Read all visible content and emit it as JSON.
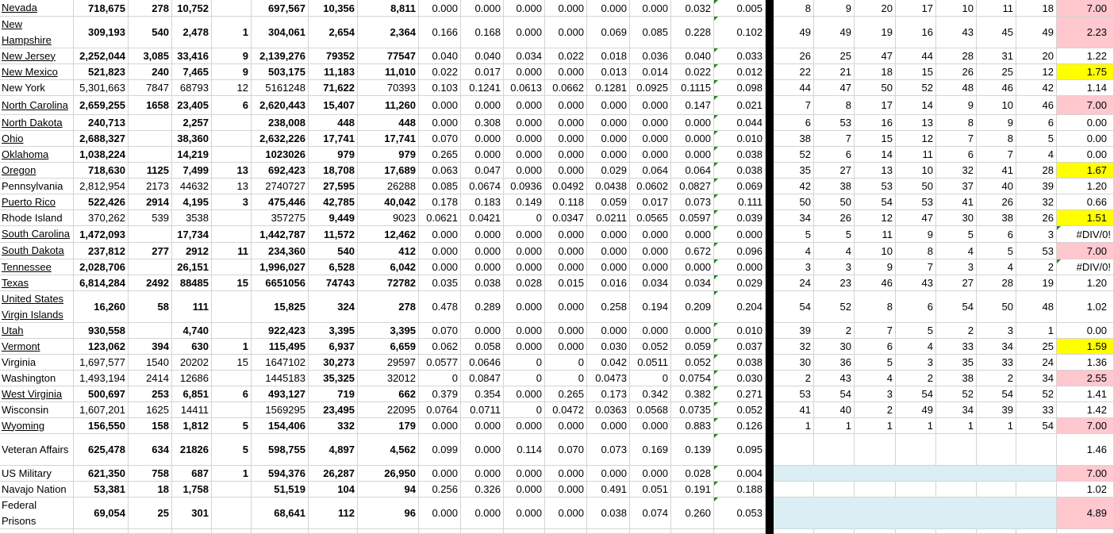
{
  "colors": {
    "pink_fill": "#ffc7ce",
    "yellow_fill": "#ffff00",
    "blue_fill": "#daeef3",
    "divider": "#000000"
  },
  "rows": [
    {
      "name": "Nevada",
      "link": true,
      "bold": true,
      "values": [
        "718,675",
        "278",
        "10,752",
        "",
        "697,567",
        "10,356",
        "8,811"
      ],
      "ratios": [
        "0.000",
        "0.000",
        "0.000",
        "0.000",
        "0.000",
        "0.000",
        "0.032"
      ],
      "avg": "0.005",
      "ranks": [
        "8",
        "9",
        "20",
        "17",
        "10",
        "11",
        "18"
      ],
      "score": "7.00",
      "score_fill": "#ffc7ce"
    },
    {
      "name": "New Hampshire",
      "link": true,
      "bold": true,
      "values": [
        "309,193",
        "540",
        "2,478",
        "1",
        "304,061",
        "2,654",
        "2,364"
      ],
      "ratios": [
        "0.166",
        "0.168",
        "0.000",
        "0.000",
        "0.069",
        "0.085",
        "0.228"
      ],
      "avg": "0.102",
      "ranks": [
        "49",
        "49",
        "19",
        "16",
        "43",
        "45",
        "49"
      ],
      "score": "2.23",
      "score_fill": "#ffc7ce"
    },
    {
      "name": "New Jersey",
      "link": true,
      "bold": true,
      "values": [
        "2,252,044",
        "3,085",
        "33,416",
        "9",
        "2,139,276",
        "79352",
        "77547"
      ],
      "ratios": [
        "0.040",
        "0.040",
        "0.034",
        "0.022",
        "0.018",
        "0.036",
        "0.040"
      ],
      "avg": "0.033",
      "ranks": [
        "26",
        "25",
        "47",
        "44",
        "28",
        "31",
        "20"
      ],
      "score": "1.22",
      "score_fill": null
    },
    {
      "name": "New Mexico",
      "link": true,
      "bold": true,
      "values": [
        "521,823",
        "240",
        "7,465",
        "9",
        "503,175",
        "11,183",
        "11,010"
      ],
      "ratios": [
        "0.022",
        "0.017",
        "0.000",
        "0.000",
        "0.013",
        "0.014",
        "0.022"
      ],
      "avg": "0.012",
      "ranks": [
        "22",
        "21",
        "18",
        "15",
        "26",
        "25",
        "12"
      ],
      "score": "1.75",
      "score_fill": "#ffff00"
    },
    {
      "name": "New York",
      "link": false,
      "bold": false,
      "values": [
        "5,301,663",
        "7847",
        "68793",
        "12",
        "5161248",
        "71,622",
        "70393"
      ],
      "ratios": [
        "0.103",
        "0.1241",
        "0.0613",
        "0.0662",
        "0.1281",
        "0.0925",
        "0.1115"
      ],
      "avg": "0.098",
      "ranks": [
        "44",
        "47",
        "50",
        "52",
        "48",
        "46",
        "42"
      ],
      "score": "1.14",
      "score_fill": null
    },
    {
      "name": "North Carolina",
      "link": true,
      "bold": true,
      "values": [
        "2,659,255",
        "1658",
        "23,405",
        "6",
        "2,620,443",
        "15,407",
        "11,260"
      ],
      "ratios": [
        "0.000",
        "0.000",
        "0.000",
        "0.000",
        "0.000",
        "0.000",
        "0.147"
      ],
      "avg": "0.021",
      "ranks": [
        "7",
        "8",
        "17",
        "14",
        "9",
        "10",
        "46"
      ],
      "score": "7.00",
      "score_fill": "#ffc7ce"
    },
    {
      "name": "North Dakota",
      "link": true,
      "bold": true,
      "values": [
        "240,713",
        "",
        "2,257",
        "",
        "238,008",
        "448",
        "448"
      ],
      "ratios": [
        "0.000",
        "0.308",
        "0.000",
        "0.000",
        "0.000",
        "0.000",
        "0.000"
      ],
      "avg": "0.044",
      "ranks": [
        "6",
        "53",
        "16",
        "13",
        "8",
        "9",
        "6"
      ],
      "score": "0.00",
      "score_fill": null
    },
    {
      "name": "Ohio",
      "link": true,
      "bold": true,
      "values": [
        "2,688,327",
        "",
        "38,360",
        "",
        "2,632,226",
        "17,741",
        "17,741"
      ],
      "ratios": [
        "0.070",
        "0.000",
        "0.000",
        "0.000",
        "0.000",
        "0.000",
        "0.000"
      ],
      "avg": "0.010",
      "ranks": [
        "38",
        "7",
        "15",
        "12",
        "7",
        "8",
        "5"
      ],
      "score": "0.00",
      "score_fill": null
    },
    {
      "name": "Oklahoma",
      "link": true,
      "bold": true,
      "values": [
        "1,038,224",
        "",
        "14,219",
        "",
        "1023026",
        "979",
        "979"
      ],
      "ratios": [
        "0.265",
        "0.000",
        "0.000",
        "0.000",
        "0.000",
        "0.000",
        "0.000"
      ],
      "avg": "0.038",
      "ranks": [
        "52",
        "6",
        "14",
        "11",
        "6",
        "7",
        "4"
      ],
      "score": "0.00",
      "score_fill": null
    },
    {
      "name": "Oregon",
      "link": true,
      "bold": true,
      "values": [
        "718,630",
        "1125",
        "7,499",
        "13",
        "692,423",
        "18,708",
        "17,689"
      ],
      "ratios": [
        "0.063",
        "0.047",
        "0.000",
        "0.000",
        "0.029",
        "0.064",
        "0.064"
      ],
      "avg": "0.038",
      "ranks": [
        "35",
        "27",
        "13",
        "10",
        "32",
        "41",
        "28"
      ],
      "score": "1.67",
      "score_fill": "#ffff00"
    },
    {
      "name": "Pennsylvania",
      "link": false,
      "bold": false,
      "values": [
        "2,812,954",
        "2173",
        "44632",
        "13",
        "2740727",
        "27,595",
        "26288"
      ],
      "ratios": [
        "0.085",
        "0.0674",
        "0.0936",
        "0.0492",
        "0.0438",
        "0.0602",
        "0.0827"
      ],
      "avg": "0.069",
      "ranks": [
        "42",
        "38",
        "53",
        "50",
        "37",
        "40",
        "39"
      ],
      "score": "1.20",
      "score_fill": null
    },
    {
      "name": "Puerto Rico",
      "link": true,
      "bold": true,
      "values": [
        "522,426",
        "2914",
        "4,195",
        "3",
        "475,446",
        "42,785",
        "40,042"
      ],
      "ratios": [
        "0.178",
        "0.183",
        "0.149",
        "0.118",
        "0.059",
        "0.017",
        "0.073"
      ],
      "avg": "0.111",
      "ranks": [
        "50",
        "50",
        "54",
        "53",
        "41",
        "26",
        "32"
      ],
      "score": "0.66",
      "score_fill": null
    },
    {
      "name": "Rhode Island",
      "link": false,
      "bold": false,
      "values": [
        "370,262",
        "539",
        "3538",
        "",
        "357275",
        "9,449",
        "9023"
      ],
      "ratios": [
        "0.0621",
        "0.0421",
        "0",
        "0.0347",
        "0.0211",
        "0.0565",
        "0.0597"
      ],
      "avg": "0.039",
      "ranks": [
        "34",
        "26",
        "12",
        "47",
        "30",
        "38",
        "26"
      ],
      "score": "1.51",
      "score_fill": "#ffff00"
    },
    {
      "name": "South Carolina",
      "link": true,
      "bold": true,
      "values": [
        "1,472,093",
        "",
        "17,734",
        "",
        "1,442,787",
        "11,572",
        "12,462"
      ],
      "ratios": [
        "0.000",
        "0.000",
        "0.000",
        "0.000",
        "0.000",
        "0.000",
        "0.000"
      ],
      "avg": "0.000",
      "ranks": [
        "5",
        "5",
        "11",
        "9",
        "5",
        "6",
        "3"
      ],
      "score": "#DIV/0!",
      "score_fill": null
    },
    {
      "name": "South Dakota",
      "link": true,
      "bold": true,
      "values": [
        "237,812",
        "277",
        "2912",
        "11",
        "234,360",
        "540",
        "412"
      ],
      "ratios": [
        "0.000",
        "0.000",
        "0.000",
        "0.000",
        "0.000",
        "0.000",
        "0.672"
      ],
      "avg": "0.096",
      "ranks": [
        "4",
        "4",
        "10",
        "8",
        "4",
        "5",
        "53"
      ],
      "score": "7.00",
      "score_fill": "#ffc7ce"
    },
    {
      "name": "Tennessee",
      "link": true,
      "bold": true,
      "values": [
        "2,028,706",
        "",
        "26,151",
        "",
        "1,996,027",
        "6,528",
        "6,042"
      ],
      "ratios": [
        "0.000",
        "0.000",
        "0.000",
        "0.000",
        "0.000",
        "0.000",
        "0.000"
      ],
      "avg": "0.000",
      "ranks": [
        "3",
        "3",
        "9",
        "7",
        "3",
        "4",
        "2"
      ],
      "score": "#DIV/0!",
      "score_fill": null
    },
    {
      "name": "Texas",
      "link": true,
      "bold": true,
      "values": [
        "6,814,284",
        "2492",
        "88485",
        "15",
        "6651056",
        "74743",
        "72782"
      ],
      "ratios": [
        "0.035",
        "0.038",
        "0.028",
        "0.015",
        "0.016",
        "0.034",
        "0.034"
      ],
      "avg": "0.029",
      "ranks": [
        "24",
        "23",
        "46",
        "43",
        "27",
        "28",
        "19"
      ],
      "score": "1.20",
      "score_fill": null
    },
    {
      "name": "United States Virgin Islands",
      "link": true,
      "bold": true,
      "values": [
        "16,260",
        "58",
        "111",
        "",
        "15,825",
        "324",
        "278"
      ],
      "ratios": [
        "0.478",
        "0.289",
        "0.000",
        "0.000",
        "0.258",
        "0.194",
        "0.209"
      ],
      "avg": "0.204",
      "ranks": [
        "54",
        "52",
        "8",
        "6",
        "54",
        "50",
        "48"
      ],
      "score": "1.02",
      "score_fill": null
    },
    {
      "name": "Utah",
      "link": true,
      "bold": true,
      "values": [
        "930,558",
        "",
        "4,740",
        "",
        "922,423",
        "3,395",
        "3,395"
      ],
      "ratios": [
        "0.070",
        "0.000",
        "0.000",
        "0.000",
        "0.000",
        "0.000",
        "0.000"
      ],
      "avg": "0.010",
      "ranks": [
        "39",
        "2",
        "7",
        "5",
        "2",
        "3",
        "1"
      ],
      "score": "0.00",
      "score_fill": null
    },
    {
      "name": "Vermont",
      "link": true,
      "bold": true,
      "values": [
        "123,062",
        "394",
        "630",
        "1",
        "115,495",
        "6,937",
        "6,659"
      ],
      "ratios": [
        "0.062",
        "0.058",
        "0.000",
        "0.000",
        "0.030",
        "0.052",
        "0.059"
      ],
      "avg": "0.037",
      "ranks": [
        "32",
        "30",
        "6",
        "4",
        "33",
        "34",
        "25"
      ],
      "score": "1.59",
      "score_fill": "#ffff00"
    },
    {
      "name": "Virginia",
      "link": false,
      "bold": false,
      "values": [
        "1,697,577",
        "1540",
        "20202",
        "15",
        "1647102",
        "30,273",
        "29597"
      ],
      "ratios": [
        "0.0577",
        "0.0646",
        "0",
        "0",
        "0.042",
        "0.0511",
        "0.052"
      ],
      "avg": "0.038",
      "ranks": [
        "30",
        "36",
        "5",
        "3",
        "35",
        "33",
        "24"
      ],
      "score": "1.36",
      "score_fill": null
    },
    {
      "name": "Washington",
      "link": false,
      "bold": false,
      "values": [
        "1,493,194",
        "2414",
        "12686",
        "",
        "1445183",
        "35,325",
        "32012"
      ],
      "ratios": [
        "0",
        "0.0847",
        "0",
        "0",
        "0.0473",
        "0",
        "0.0754"
      ],
      "avg": "0.030",
      "ranks": [
        "2",
        "43",
        "4",
        "2",
        "38",
        "2",
        "34"
      ],
      "score": "2.55",
      "score_fill": "#ffc7ce"
    },
    {
      "name": "West Virginia",
      "link": true,
      "bold": true,
      "values": [
        "500,697",
        "253",
        "6,851",
        "6",
        "493,127",
        "719",
        "662"
      ],
      "ratios": [
        "0.379",
        "0.354",
        "0.000",
        "0.265",
        "0.173",
        "0.342",
        "0.382"
      ],
      "avg": "0.271",
      "ranks": [
        "53",
        "54",
        "3",
        "54",
        "52",
        "54",
        "52"
      ],
      "score": "1.41",
      "score_fill": null
    },
    {
      "name": "Wisconsin",
      "link": false,
      "bold": false,
      "values": [
        "1,607,201",
        "1625",
        "14411",
        "",
        "1569295",
        "23,495",
        "22095"
      ],
      "ratios": [
        "0.0764",
        "0.0711",
        "0",
        "0.0472",
        "0.0363",
        "0.0568",
        "0.0735"
      ],
      "avg": "0.052",
      "ranks": [
        "41",
        "40",
        "2",
        "49",
        "34",
        "39",
        "33"
      ],
      "score": "1.42",
      "score_fill": null
    },
    {
      "name": "Wyoming",
      "link": true,
      "bold": true,
      "values": [
        "156,550",
        "158",
        "1,812",
        "5",
        "154,406",
        "332",
        "179"
      ],
      "ratios": [
        "0.000",
        "0.000",
        "0.000",
        "0.000",
        "0.000",
        "0.000",
        "0.883"
      ],
      "avg": "0.126",
      "ranks": [
        "1",
        "1",
        "1",
        "1",
        "1",
        "1",
        "54"
      ],
      "score": "7.00",
      "score_fill": "#ffc7ce"
    },
    {
      "name": "Veteran Affairs",
      "link": false,
      "bold": true,
      "values": [
        "625,478",
        "634",
        "21826",
        "5",
        "598,755",
        "4,897",
        "4,562"
      ],
      "ratios": [
        "0.099",
        "0.000",
        "0.114",
        "0.070",
        "0.073",
        "0.169",
        "0.139"
      ],
      "avg": "0.095",
      "ranks": [
        "",
        "",
        "",
        "",
        "",
        "",
        ""
      ],
      "score": "1.46",
      "score_fill": null
    },
    {
      "name": "US Military",
      "link": false,
      "bold": true,
      "values": [
        "621,350",
        "758",
        "687",
        "1",
        "594,376",
        "26,287",
        "26,950"
      ],
      "ratios": [
        "0.000",
        "0.000",
        "0.000",
        "0.000",
        "0.000",
        "0.000",
        "0.028"
      ],
      "avg": "0.004",
      "ranks": [
        "",
        "",
        "",
        "",
        "",
        "",
        ""
      ],
      "ranks_fill": "#daeef3",
      "score": "7.00",
      "score_fill": "#ffc7ce"
    },
    {
      "name": "Navajo Nation",
      "link": false,
      "bold": true,
      "values": [
        "53,381",
        "18",
        "1,758",
        "",
        "51,519",
        "104",
        "94"
      ],
      "ratios": [
        "0.256",
        "0.326",
        "0.000",
        "0.000",
        "0.491",
        "0.051",
        "0.191"
      ],
      "avg": "0.188",
      "ranks": [
        "",
        "",
        "",
        "",
        "",
        "",
        ""
      ],
      "score": "1.02",
      "score_fill": null
    },
    {
      "name": "Federal Prisons",
      "link": false,
      "bold": true,
      "values": [
        "69,054",
        "25",
        "301",
        "",
        "68,641",
        "112",
        "96"
      ],
      "ratios": [
        "0.000",
        "0.000",
        "0.000",
        "0.000",
        "0.038",
        "0.074",
        "0.260"
      ],
      "avg": "0.053",
      "ranks": [
        "",
        "",
        "",
        "",
        "",
        "",
        ""
      ],
      "ranks_fill": "#daeef3",
      "score": "4.89",
      "score_fill": "#ffc7ce"
    }
  ]
}
